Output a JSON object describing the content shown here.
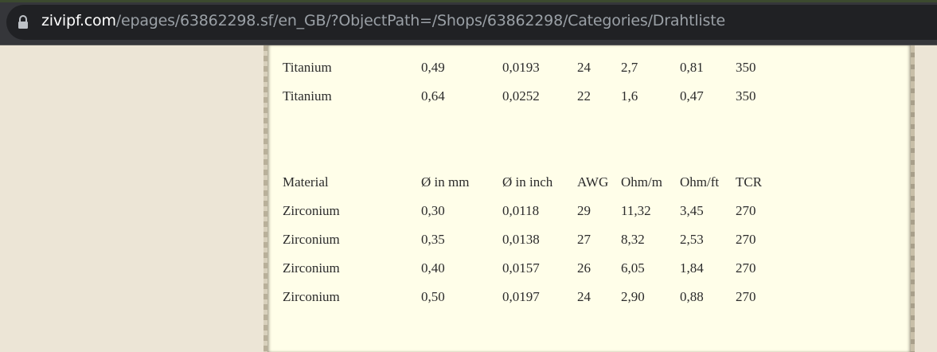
{
  "address_bar": {
    "host": "zivipf.com",
    "path": "/epages/63862298.sf/en_GB/?ObjectPath=/Shops/63862298/Categories/Drahtliste"
  },
  "titanium_table": {
    "rows": [
      [
        "Titanium",
        "0,49",
        "0,0193",
        "24",
        "2,7",
        "0,81",
        "350"
      ],
      [
        "Titanium",
        "0,64",
        "0,0252",
        "22",
        "1,6",
        "0,47",
        "350"
      ]
    ]
  },
  "zirconium_table": {
    "header": [
      "Material",
      "Ø in mm",
      "Ø in inch",
      "AWG",
      "Ohm/m",
      "Ohm/ft",
      "TCR"
    ],
    "rows": [
      [
        "Zirconium",
        "0,30",
        "0,0118",
        "29",
        "11,32",
        "3,45",
        "270"
      ],
      [
        "Zirconium",
        "0,35",
        "0,0138",
        "27",
        "8,32",
        "2,53",
        "270"
      ],
      [
        "Zirconium",
        "0,40",
        "0,0157",
        "26",
        "6,05",
        "1,84",
        "270"
      ],
      [
        "Zirconium",
        "0,50",
        "0,0197",
        "24",
        "2,90",
        "0,88",
        "270"
      ]
    ]
  }
}
